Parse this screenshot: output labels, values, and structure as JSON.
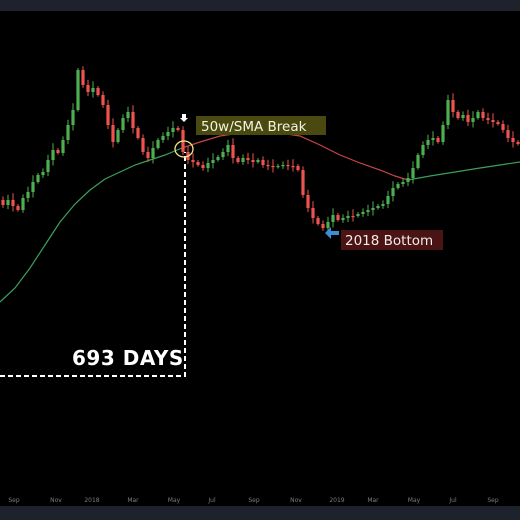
{
  "chart_data": {
    "type": "candlestick",
    "title": "",
    "xlabel": "",
    "ylabel": "",
    "x_tick_labels": [
      "Sep",
      "Nov",
      "2018",
      "Mar",
      "May",
      "Jul",
      "Sep",
      "Nov",
      "2019",
      "Mar",
      "May",
      "Jul",
      "Sep"
    ],
    "x_tick_years": [
      "2018",
      "2019"
    ],
    "grid": false,
    "colors": {
      "up": "#4caf50",
      "down": "#ef5350",
      "ma_green": "#3aa05a",
      "ma_red": "#c84545",
      "background": "#000000"
    },
    "series": [
      {
        "name": "50w/SMA",
        "kind": "moving-average"
      }
    ],
    "annotations": {
      "interval": "693 DAYS",
      "break_label": "50w/SMA Break",
      "bottom_label": "2018 Bottom"
    }
  }
}
